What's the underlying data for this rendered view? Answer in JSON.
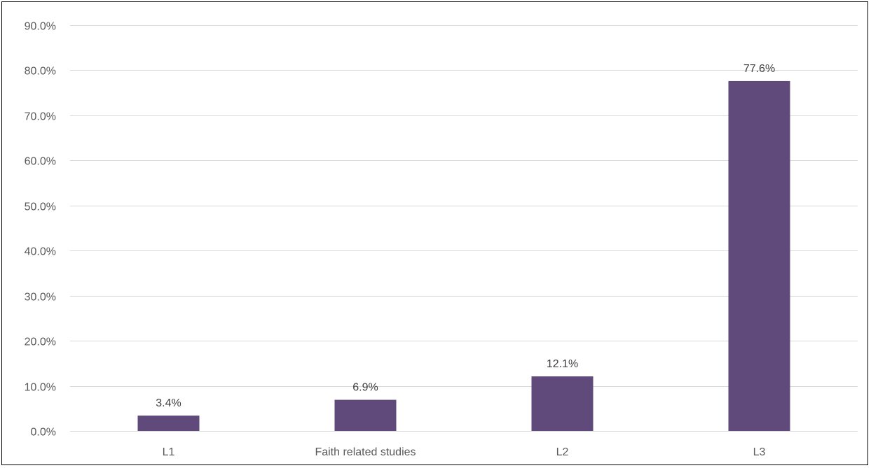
{
  "chart_data": {
    "type": "bar",
    "categories": [
      "L1",
      "Faith related studies",
      "L2",
      "L3"
    ],
    "values": [
      3.4,
      6.9,
      12.1,
      77.6
    ],
    "data_labels": [
      "3.4%",
      "6.9%",
      "12.1%",
      "77.6%"
    ],
    "title": "",
    "xlabel": "",
    "ylabel": "",
    "ylim": [
      0,
      90
    ],
    "yticks": [
      0,
      10,
      20,
      30,
      40,
      50,
      60,
      70,
      80,
      90
    ],
    "ytick_labels": [
      "0.0%",
      "10.0%",
      "20.0%",
      "30.0%",
      "40.0%",
      "50.0%",
      "60.0%",
      "70.0%",
      "80.0%",
      "90.0%"
    ],
    "grid": true,
    "legend": "none",
    "bar_color": "#604a7b"
  }
}
